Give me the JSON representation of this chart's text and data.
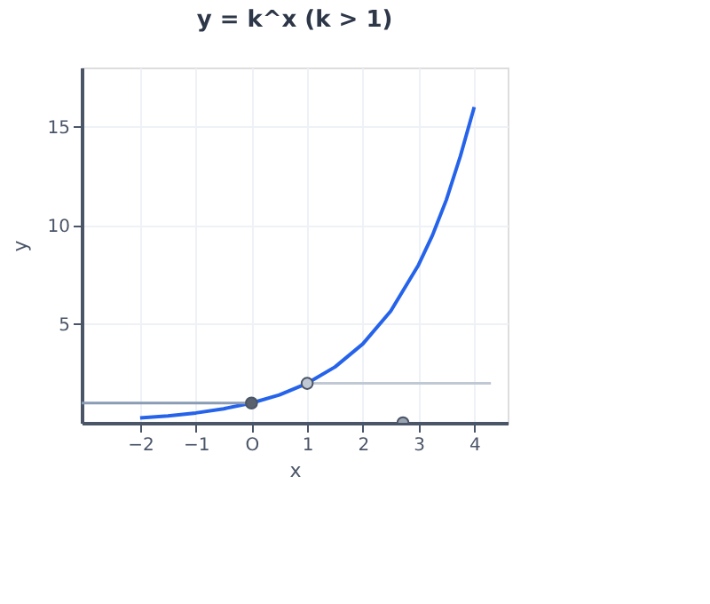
{
  "chart_data": {
    "type": "line",
    "title": "y = k^x (k > 1)",
    "xlabel": "x",
    "ylabel": "y",
    "xlim": [
      -3.05,
      4.6
    ],
    "ylim": [
      0,
      18
    ],
    "xticks": [
      {
        "value": -2,
        "label": "−2"
      },
      {
        "value": -1,
        "label": "−1"
      },
      {
        "value": 0,
        "label": "O"
      },
      1,
      2,
      3,
      4
    ],
    "yticks": [
      5,
      10,
      15
    ],
    "grid": true,
    "legend": false,
    "series": [
      {
        "color": "#2563eb",
        "x": [
          -2,
          -1.5,
          -1,
          -0.5,
          0,
          0.5,
          1,
          1.5,
          2,
          2.5,
          3,
          3.25,
          3.5,
          3.75,
          4
        ],
        "values": [
          0.25,
          0.35,
          0.5,
          0.71,
          1,
          1.41,
          2,
          2.83,
          4,
          5.66,
          8,
          9.5,
          11.3,
          13.5,
          16
        ]
      },
      {
        "type": "line",
        "color": "#8a9bb5",
        "x": [
          -3.05,
          0
        ],
        "values": [
          1,
          1
        ]
      },
      {
        "type": "line",
        "color": "#c0c8d4",
        "x": [
          1,
          4.3
        ],
        "values": [
          2,
          2
        ]
      },
      {
        "type": "scatter",
        "color": "#5a6270",
        "x": [
          0
        ],
        "values": [
          1
        ]
      },
      {
        "type": "scatter",
        "color": "#c0c8d4",
        "x": [
          1
        ],
        "values": [
          2
        ]
      },
      {
        "type": "scatter",
        "color": "#9aa3b0",
        "x": [
          2.72
        ],
        "values": [
          0
        ]
      }
    ]
  }
}
